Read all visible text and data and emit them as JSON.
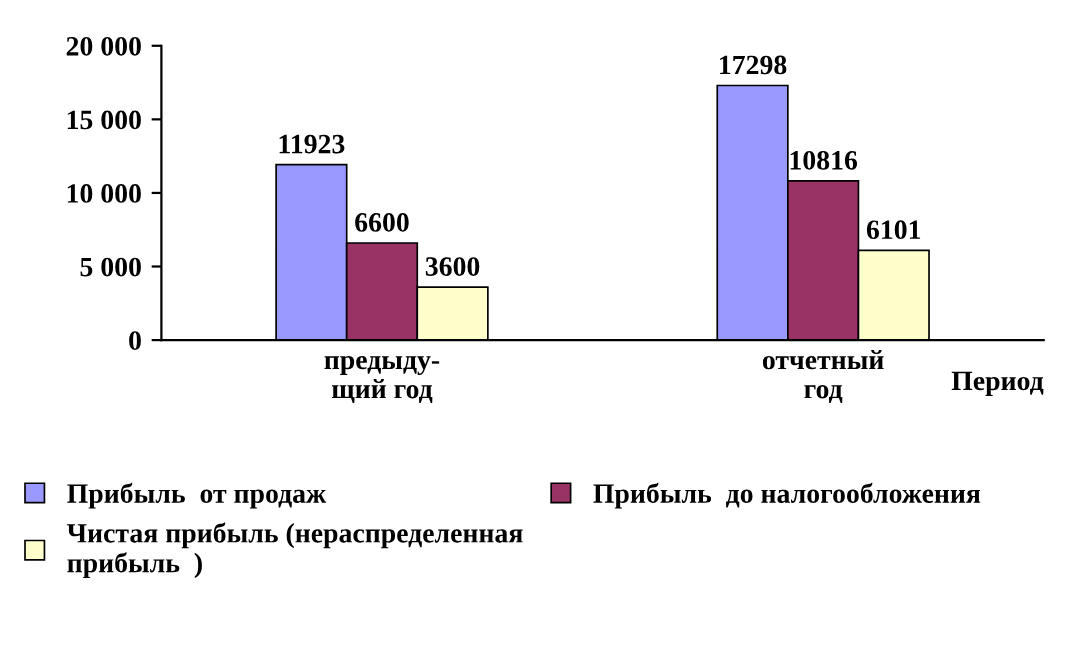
{
  "chart_data": {
    "type": "bar",
    "xlabel": "Период",
    "categories": [
      "предыду-\nщий год",
      "отчетный\nгод"
    ],
    "series": [
      {
        "name": "Прибыль  от продаж",
        "color": "#9999ff",
        "values": [
          11923,
          17298
        ]
      },
      {
        "name": "Прибыль  до налогообложения",
        "color": "#993366",
        "values": [
          6600,
          10816
        ]
      },
      {
        "name": "Чистая прибыль (нераспределенная\nприбыль  )",
        "color": "#ffffcc",
        "values": [
          3600,
          6101
        ]
      }
    ],
    "ylim": [
      0,
      20000
    ],
    "yticks": [
      {
        "value": 0,
        "label": "0"
      },
      {
        "value": 5000,
        "label": "5 000"
      },
      {
        "value": 10000,
        "label": "10 000"
      },
      {
        "value": 15000,
        "label": "15 000"
      },
      {
        "value": 20000,
        "label": "20 000"
      }
    ],
    "data_labels": true,
    "grid": false,
    "legend": "bottom"
  }
}
